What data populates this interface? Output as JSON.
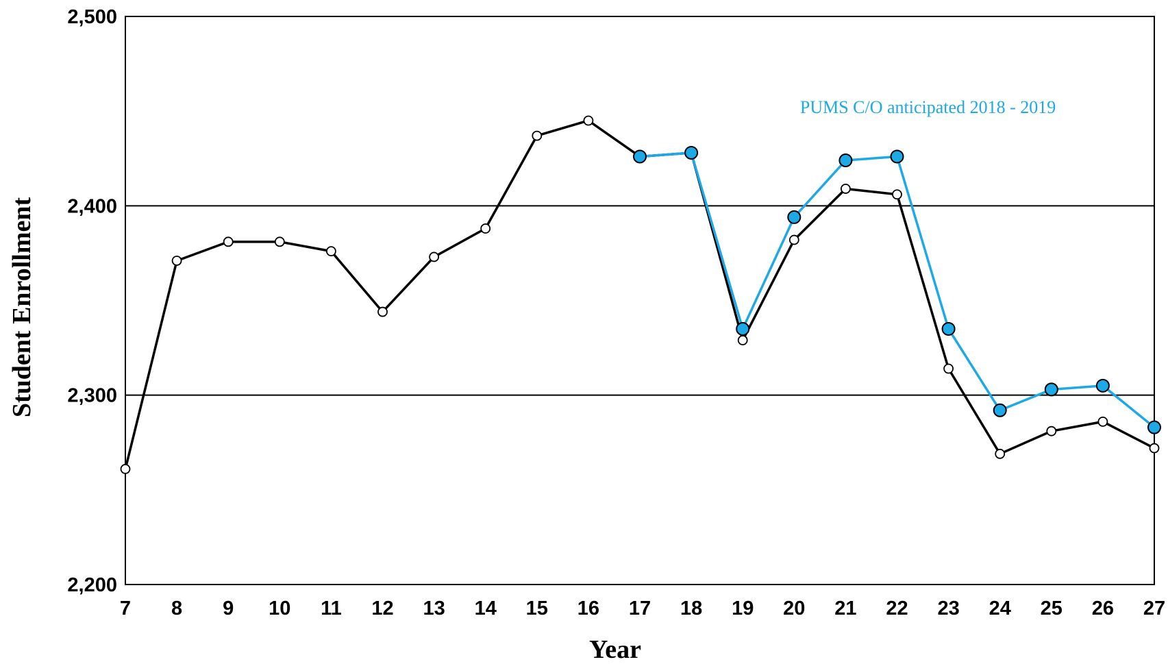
{
  "chart_data": {
    "type": "line",
    "xlabel": "Year",
    "ylabel": "Student Enrollment",
    "x": [
      7,
      8,
      9,
      10,
      11,
      12,
      13,
      14,
      15,
      16,
      17,
      18,
      19,
      20,
      21,
      22,
      23,
      24,
      25,
      26,
      27
    ],
    "xlim": [
      7,
      27
    ],
    "ylim": [
      2200,
      2500
    ],
    "y_ticks": [
      2200,
      2300,
      2400,
      2500
    ],
    "y_tick_labels": [
      "2,200",
      "2,300",
      "2,400",
      "2,500"
    ],
    "grid": "horizontal at 2,300 and 2,400",
    "series": [
      {
        "color": "#000000",
        "marker": "hollow-circle",
        "x": [
          7,
          8,
          9,
          10,
          11,
          12,
          13,
          14,
          15,
          16,
          17,
          18,
          19,
          20,
          21,
          22,
          23,
          24,
          25,
          26,
          27
        ],
        "values": [
          2261,
          2371,
          2381,
          2381,
          2376,
          2344,
          2373,
          2388,
          2437,
          2445,
          2426,
          2428,
          2329,
          2382,
          2409,
          2406,
          2314,
          2269,
          2281,
          2286,
          2272
        ]
      },
      {
        "color": "#1ca9e6",
        "marker": "filled-circle",
        "x": [
          17,
          18,
          19,
          20,
          21,
          22,
          23,
          24,
          25,
          26,
          27
        ],
        "values": [
          2426,
          2428,
          2335,
          2394,
          2424,
          2426,
          2335,
          2292,
          2303,
          2305,
          2283
        ]
      }
    ],
    "annotations": [
      {
        "text": "PUMS C/O anticipated 2018 - 2019",
        "color": "#1ca9e6",
        "x": 22.6,
        "y": 2449
      }
    ]
  }
}
